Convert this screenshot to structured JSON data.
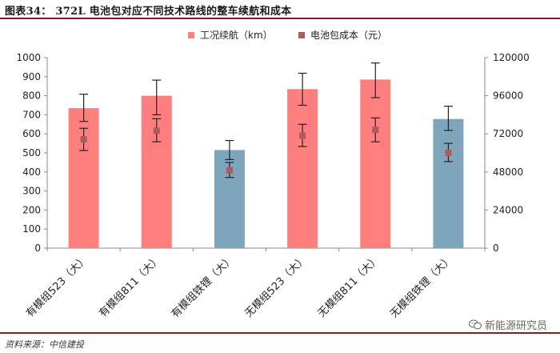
{
  "header": {
    "title": "图表34：  372L 电池包对应不同技术路线的整车续航和成本"
  },
  "footer": {
    "source": "资料来源：中信建投"
  },
  "watermark": {
    "text": "新能源研究员",
    "icon": "wechat-icon"
  },
  "colors": {
    "range_bar": "#ff7f7f",
    "cost_bar": "#7fa5bd",
    "cost_marker": "#b05a5a",
    "error_bar": "#222222",
    "header_rule": "#8b1a1a"
  },
  "chart_data": {
    "type": "bar",
    "legend_position": "top-right",
    "categories": [
      "有模组523（大）",
      "有模组811（大）",
      "有模组铁锂（大）",
      "无模组523（大）",
      "无模组811（大）",
      "无模组铁锂（大）"
    ],
    "left_axis": {
      "min": 0,
      "max": 1000,
      "ticks": [
        "0",
        "100",
        "200",
        "300",
        "400",
        "500",
        "600",
        "700",
        "800",
        "900",
        "1000"
      ]
    },
    "right_axis": {
      "min": 0,
      "max": 120000,
      "ticks": [
        "0",
        "24000",
        "48000",
        "72000",
        "96000",
        "120000"
      ]
    },
    "grid": false,
    "series": [
      {
        "name": "工况续航（km）",
        "axis": "left",
        "kind": "bar",
        "values": [
          735,
          800,
          515,
          835,
          885,
          678
        ],
        "error_low": [
          665,
          700,
          465,
          750,
          790,
          618
        ],
        "error_high": [
          808,
          882,
          565,
          918,
          972,
          745
        ],
        "bar_colors": [
          "#ff7f7f",
          "#ff7f7f",
          "#7fa5bd",
          "#ff7f7f",
          "#ff7f7f",
          "#7fa5bd"
        ]
      },
      {
        "name": "电池包成本（元）",
        "axis": "right",
        "kind": "marker",
        "values": [
          68500,
          74000,
          49000,
          70800,
          74500,
          60000
        ],
        "error_low": [
          61500,
          67000,
          44500,
          64000,
          67000,
          54500
        ],
        "error_high": [
          75500,
          81500,
          54000,
          78000,
          82000,
          66000
        ]
      }
    ]
  }
}
